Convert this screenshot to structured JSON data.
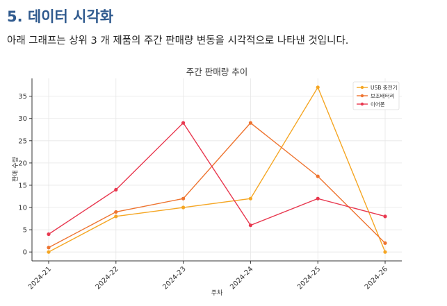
{
  "heading": "5. 데이터 시각화",
  "description": "아래 그래프는 상위 3 개 제품의 주간 판매량 변동을 시각적으로 나타낸 것입니다.",
  "chart_data": {
    "type": "line",
    "title": "주간 판매량 추이",
    "xlabel": "주차",
    "ylabel": "판매 수량",
    "categories": [
      "2024-21",
      "2024-22",
      "2024-23",
      "2024-24",
      "2024-25",
      "2024-26"
    ],
    "ylim": [
      -2,
      39
    ],
    "yticks": [
      0,
      5,
      10,
      15,
      20,
      25,
      30,
      35
    ],
    "grid": true,
    "legend_position": "top-right",
    "series": [
      {
        "name": "USB 충전기",
        "color": "#f5a623",
        "values": [
          0,
          8,
          10,
          12,
          37,
          0
        ]
      },
      {
        "name": "보조배터리",
        "color": "#ee7430",
        "values": [
          1,
          9,
          12,
          29,
          17,
          2
        ]
      },
      {
        "name": "이어폰",
        "color": "#e8384f",
        "values": [
          4,
          14,
          29,
          6,
          12,
          8
        ]
      }
    ]
  }
}
